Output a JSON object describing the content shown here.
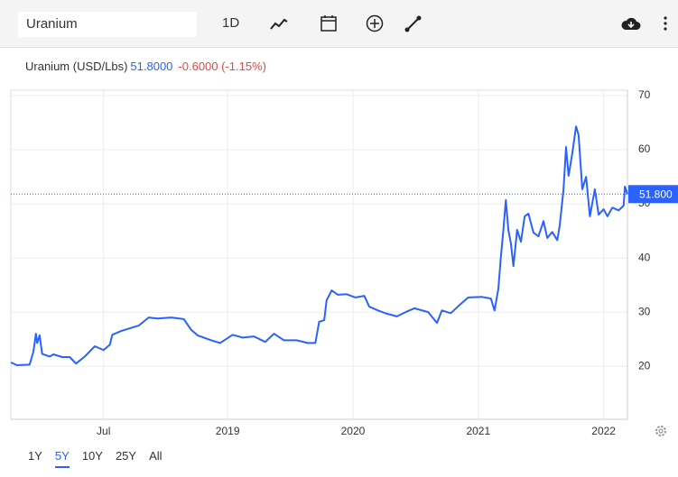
{
  "toolbar": {
    "search": "Uranium",
    "interval": "1D"
  },
  "header": {
    "name": "Uranium (USD/Lbs)",
    "price": "51.8000",
    "change": "-0.6000 (-1.15%)"
  },
  "ranges": [
    "1Y",
    "5Y",
    "10Y",
    "25Y",
    "All"
  ],
  "active_range": "5Y",
  "chart_data": {
    "type": "line",
    "xlim": [
      2017.27,
      2022.19
    ],
    "ylim": [
      10.2,
      71
    ],
    "xticks": [
      {
        "value": 2018.01,
        "label": "Jul"
      },
      {
        "value": 2019,
        "label": "2019"
      },
      {
        "value": 2020,
        "label": "2020"
      },
      {
        "value": 2021,
        "label": "2021"
      },
      {
        "value": 2022,
        "label": "2022"
      }
    ],
    "yticks": [
      20,
      30,
      40,
      50,
      60,
      70
    ],
    "grid": true,
    "last_price": {
      "value": 51.8,
      "label": "51.800"
    },
    "series": [
      {
        "color": "#2962ff",
        "x": [
          2017.27,
          2017.32,
          2017.42,
          2017.45,
          2017.47,
          2017.48,
          2017.5,
          2017.52,
          2017.58,
          2017.61,
          2017.68,
          2017.74,
          2017.79,
          2017.86,
          2017.94,
          2018.01,
          2018.06,
          2018.08,
          2018.15,
          2018.22,
          2018.29,
          2018.37,
          2018.44,
          2018.55,
          2018.65,
          2018.71,
          2018.76,
          2018.87,
          2018.94,
          2019.04,
          2019.12,
          2019.21,
          2019.3,
          2019.37,
          2019.45,
          2019.55,
          2019.64,
          2019.7,
          2019.73,
          2019.77,
          2019.79,
          2019.83,
          2019.88,
          2019.95,
          2020.02,
          2020.09,
          2020.13,
          2020.2,
          2020.27,
          2020.35,
          2020.42,
          2020.49,
          2020.6,
          2020.67,
          2020.71,
          2020.78,
          2020.85,
          2020.92,
          2021.03,
          2021.1,
          2021.13,
          2021.16,
          2021.18,
          2021.2,
          2021.22,
          2021.24,
          2021.26,
          2021.28,
          2021.31,
          2021.34,
          2021.37,
          2021.4,
          2021.44,
          2021.48,
          2021.52,
          2021.55,
          2021.59,
          2021.63,
          2021.65,
          2021.68,
          2021.7,
          2021.72,
          2021.75,
          2021.78,
          2021.8,
          2021.83,
          2021.86,
          2021.89,
          2021.93,
          2021.96,
          2022.0,
          2022.03,
          2022.07,
          2022.12,
          2022.16,
          2022.17,
          2022.19
        ],
        "values": [
          20.7,
          20.2,
          20.3,
          22.7,
          26,
          24.3,
          25.7,
          22.3,
          21.8,
          22.2,
          21.7,
          21.7,
          20.5,
          21.8,
          23.7,
          23,
          24,
          25.8,
          26.5,
          27,
          27.5,
          29,
          28.8,
          29,
          28.7,
          26.7,
          25.7,
          24.8,
          24.3,
          25.8,
          25.3,
          25.5,
          24.5,
          26,
          24.8,
          24.8,
          24.3,
          24.3,
          28.2,
          28.5,
          32.2,
          34,
          33.2,
          33.3,
          32.7,
          33,
          31,
          30.3,
          29.7,
          29.2,
          30,
          30.7,
          30,
          28,
          30.3,
          29.8,
          31.3,
          32.7,
          32.8,
          32.5,
          30.3,
          34.3,
          40.2,
          45.2,
          50.7,
          45.2,
          42.7,
          38.5,
          45.2,
          43,
          47.7,
          48.2,
          44.7,
          44,
          46.8,
          43.7,
          44.8,
          43.3,
          46,
          52.7,
          60.5,
          55.2,
          59.3,
          64.3,
          62.7,
          52.7,
          55,
          47.7,
          52.7,
          48,
          49,
          47.7,
          49.3,
          48.8,
          49.7,
          53.2,
          51.8
        ]
      }
    ]
  }
}
